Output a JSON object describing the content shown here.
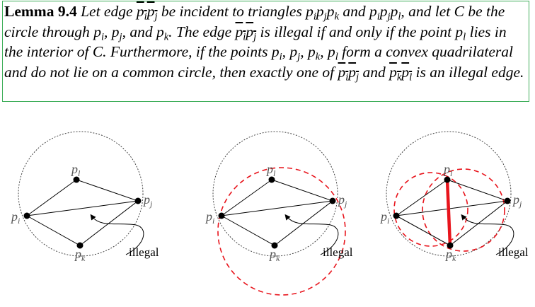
{
  "lemma": {
    "number": "Lemma 9.4",
    "t1": "Let edge",
    "t2": "be incident to triangles",
    "t3": "and",
    "t4": ", and let",
    "C": "C",
    "t5": "be the circle through",
    "t6": "and",
    "t7": ". The edge",
    "t8": "is illegal if and only if the point",
    "t9": "lies in the interior of",
    "t10": ". Furthermore, if the points",
    "t11": "form a convex quadrilateral and do not lie on a common circle, then exactly one of",
    "t12": "and",
    "t13": "is an illegal edge."
  },
  "figure": {
    "labels": {
      "p": "p",
      "i": "i",
      "j": "j",
      "k": "k",
      "l": "l"
    },
    "illegal_label": "illegal"
  },
  "colors": {
    "box_border": "#3fae5a",
    "highlight": "#e8141c",
    "point": "#000000"
  }
}
